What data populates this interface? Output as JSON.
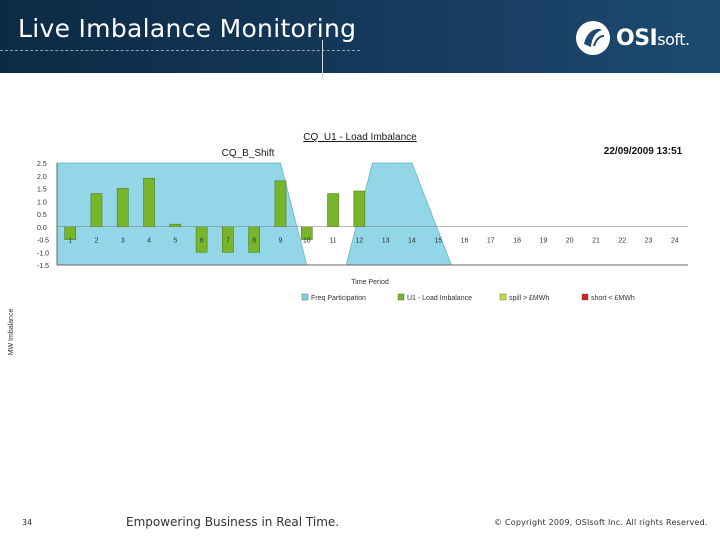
{
  "slide": {
    "title": "Live Imbalance Monitoring",
    "logo_text": "OSI",
    "logo_suffix": "soft.",
    "page_number": "34",
    "tagline": "Empowering Business in Real Time.",
    "copyright": "© Copyright 2009, OSIsoft Inc. All rights Reserved."
  },
  "colors": {
    "header": "#0b2a44",
    "freq": "#7fd0e4",
    "imbalance": "#77b62a",
    "spill": "#c9d83e",
    "short": "#d42020"
  },
  "chart_data": {
    "type": "bar",
    "title": "CQ_U1 - Load Imbalance",
    "subtitle": "CQ_B_Shift",
    "timestamp": "22/09/2009 13:51",
    "xlabel": "Time Period",
    "ylabel": "MW Imbalance",
    "ylim": [
      -1.5,
      2.5
    ],
    "yticks": [
      "2.5",
      "2.0",
      "1.5",
      "1.0",
      "0.5",
      "0.0",
      "-0.5",
      "-1.0",
      "-1.5"
    ],
    "categories": [
      "1",
      "2",
      "3",
      "4",
      "5",
      "6",
      "7",
      "8",
      "9",
      "10",
      "11",
      "12",
      "13",
      "14",
      "15",
      "16",
      "17",
      "18",
      "19",
      "20",
      "21",
      "22",
      "23",
      "24"
    ],
    "series": [
      {
        "name": "U1 - Load Imbalance",
        "values": [
          -0.5,
          1.3,
          1.5,
          1.9,
          0.1,
          -1.0,
          -1.0,
          -1.0,
          1.8,
          -0.5,
          1.3,
          1.4,
          null,
          null,
          null,
          null,
          null,
          null,
          null,
          null,
          null,
          null,
          null,
          null
        ]
      }
    ],
    "freq_participation": [
      {
        "start": 0.5,
        "end": 9.0,
        "top": 2.5,
        "bottom": -1.5,
        "end_bottom": 10.0
      },
      {
        "start": 12.5,
        "end": 14.0,
        "top": 2.5,
        "bottom": -1.5,
        "start_bottom": 11.5,
        "end_bottom": 15.5
      }
    ],
    "legend": [
      "Freq Participation",
      "U1 - Load Imbalance",
      "spill > £MWh",
      "short < £MWh"
    ]
  }
}
